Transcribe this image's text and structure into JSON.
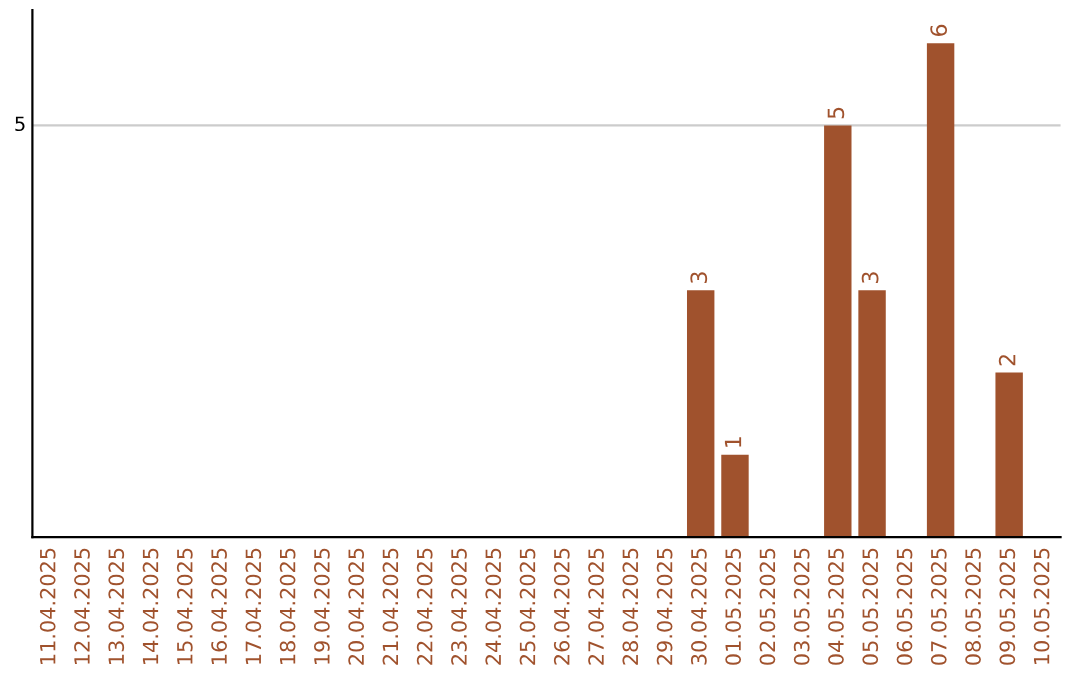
{
  "chart_data": {
    "type": "bar",
    "categories": [
      "11.04.2025",
      "12.04.2025",
      "13.04.2025",
      "14.04.2025",
      "15.04.2025",
      "16.04.2025",
      "17.04.2025",
      "18.04.2025",
      "19.04.2025",
      "20.04.2025",
      "21.04.2025",
      "22.04.2025",
      "23.04.2025",
      "24.04.2025",
      "25.04.2025",
      "26.04.2025",
      "27.04.2025",
      "28.04.2025",
      "29.04.2025",
      "30.04.2025",
      "01.05.2025",
      "02.05.2025",
      "03.05.2025",
      "04.05.2025",
      "05.05.2025",
      "06.05.2025",
      "07.05.2025",
      "08.05.2025",
      "09.05.2025",
      "10.05.2025"
    ],
    "values": [
      null,
      null,
      null,
      null,
      null,
      null,
      null,
      null,
      null,
      null,
      null,
      null,
      null,
      null,
      null,
      null,
      null,
      null,
      null,
      3,
      1,
      null,
      null,
      5,
      3,
      null,
      6,
      null,
      2,
      null
    ],
    "data_labels": true,
    "color": "#a0522d",
    "ylim": [
      0,
      6.4
    ],
    "ref_lines": [
      {
        "axis": "y",
        "value": 5,
        "label": "5",
        "color": "#cccccc"
      }
    ]
  }
}
